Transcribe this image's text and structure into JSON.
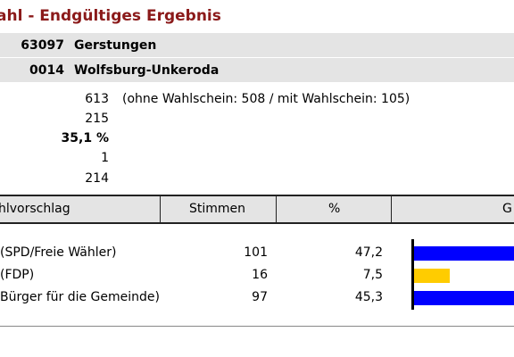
{
  "page": {
    "title": "ahl - Endgültiges Ergebnis"
  },
  "location": {
    "municipality_code": "63097",
    "municipality_name": "Gerstungen",
    "district_code": "0014",
    "district_name": "Wolfsburg-Unkeroda"
  },
  "stats": {
    "row1_value": "613",
    "row1_note": "(ohne Wahlschein: 508 / mit Wahlschein: 105)",
    "row2_value": "215",
    "row3_value": "35,1 %",
    "row4_value": "1",
    "row5_value": "214"
  },
  "table": {
    "headers": {
      "wahlvorschlag": "hlvorschlag",
      "stimmen": "Stimmen",
      "prozent": "%",
      "grafik": "G"
    },
    "rows": [
      {
        "name": "(SPD/Freie Wähler)",
        "stimmen": "101",
        "prozent": "47,2"
      },
      {
        "name": "(FDP)",
        "stimmen": "16",
        "prozent": "7,5"
      },
      {
        "name": "Bürger für die Gemeinde)",
        "stimmen": "97",
        "prozent": "45,3"
      }
    ]
  },
  "chart_data": {
    "type": "bar",
    "categories": [
      "(SPD/Freie Wähler)",
      "(FDP)",
      "Bürger für die Gemeinde)"
    ],
    "values": [
      47.2,
      7.5,
      45.3
    ],
    "colors": [
      "#0000ff",
      "#ffcc00",
      "#0000ff"
    ]
  }
}
